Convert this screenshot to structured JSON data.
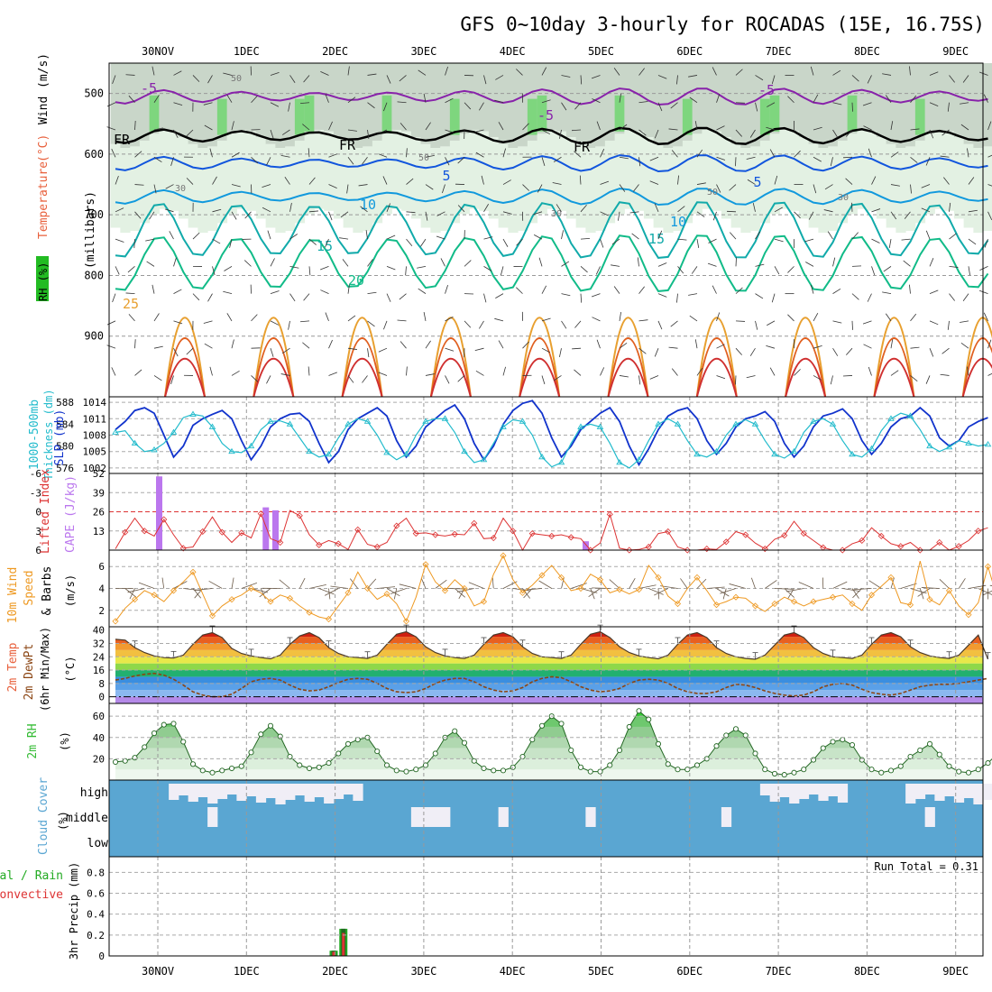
{
  "title": "GFS 0~10day 3-hourly for ROCADAS (15E, 16.75S)",
  "dates": [
    "30NOV",
    "1DEC",
    "2DEC",
    "3DEC",
    "4DEC",
    "5DEC",
    "6DEC",
    "7DEC",
    "8DEC",
    "9DEC"
  ],
  "colors": {
    "temp": "#e8603c",
    "wind": "#000000",
    "rh": "#22bb22",
    "slp": "#1133cc",
    "thick": "#22bbcc",
    "li": "#dd3333",
    "cape": "#bb77ee",
    "wind10": "#ee9922",
    "dew": "#8b4513",
    "rh2m": "#33bb33",
    "cloud": "#5aa6d2",
    "rain": "#dd3333",
    "total": "#22aa22"
  },
  "chart_data": [
    {
      "type": "heatmap",
      "id": "upper_air",
      "ylabel": "(millibars)",
      "side_labels": [
        "Temperature",
        "(°C)",
        "Wind",
        "(m/s)",
        "RH (%)"
      ],
      "y_ticks": [
        500,
        600,
        700,
        800,
        900
      ],
      "ylim": [
        1000,
        450
      ],
      "contour_labels": [
        "-5",
        "-5",
        "-5",
        "FR",
        "FR",
        "FR",
        "5",
        "5",
        "10",
        "10",
        "15",
        "15",
        "20",
        "25",
        "50",
        "50",
        "50",
        "30",
        "30",
        "30"
      ],
      "isotherm_levels": {
        "-5": 505,
        "FR": 570,
        "5": 615,
        "10": 670,
        "15": 725,
        "20": 780
      }
    },
    {
      "type": "line",
      "id": "slp_thickness",
      "side_labels": [
        "1000-500mb",
        "Thickness (dm)",
        "SLP (mb)"
      ],
      "left_ticks": [
        "588",
        "584",
        "580",
        "576"
      ],
      "right_ticks": [
        "1014",
        "1011",
        "1008",
        "1005",
        "1002"
      ],
      "slp_ylim": [
        1001,
        1015
      ],
      "thick_ylim": [
        575,
        589
      ],
      "series": [
        {
          "name": "SLP (mb)",
          "values": [
            1009.0,
            1010.5,
            1012.5,
            1013.0,
            1012.0,
            1008.0,
            1004.0,
            1006.0,
            1009.8,
            1011.0,
            1011.8,
            1012.5,
            1011.0,
            1007.0,
            1003.5,
            1006.0,
            1009.5,
            1011.0,
            1011.8,
            1012.0,
            1010.5,
            1006.5,
            1003.0,
            1005.0,
            1009.0,
            1011.0,
            1012.0,
            1013.0,
            1011.5,
            1007.0,
            1004.0,
            1006.0,
            1009.5,
            1011.0,
            1012.5,
            1013.5,
            1011.0,
            1006.5,
            1003.5,
            1006.0,
            1010.0,
            1012.5,
            1013.8,
            1014.3,
            1012.0,
            1007.5,
            1004.0,
            1006.0,
            1009.0,
            1010.5,
            1012.0,
            1013.0,
            1010.5,
            1006.0,
            1002.6,
            1005.5,
            1009.0,
            1011.5,
            1012.5,
            1013.0,
            1011.0,
            1007.0,
            1004.5,
            1006.5,
            1009.5,
            1011.0,
            1011.5,
            1012.3,
            1010.5,
            1006.5,
            1004.0,
            1006.0,
            1009.5,
            1011.5,
            1012.0,
            1012.8,
            1011.0,
            1007.0,
            1004.5,
            1006.5,
            1009.5,
            1011.0,
            1011.5,
            1013.0,
            1011.5,
            1007.5,
            1006.0,
            1007.0,
            1009.5,
            1010.5,
            1011.2
          ]
        },
        {
          "name": "1000-500mb Thickness (dm)",
          "values": [
            582.5,
            582.8,
            580.5,
            579.0,
            579.3,
            580.5,
            582.5,
            585.2,
            585.8,
            585.5,
            583.5,
            580.5,
            579.0,
            578.8,
            580.0,
            583.0,
            584.5,
            584.6,
            584.0,
            581.5,
            579.0,
            578.0,
            578.5,
            581.5,
            584.0,
            585.0,
            584.5,
            582.0,
            578.8,
            577.5,
            578.5,
            582.0,
            584.5,
            585.0,
            585.0,
            582.5,
            579.0,
            577.0,
            577.5,
            580.5,
            583.5,
            584.8,
            584.5,
            582.0,
            578.0,
            576.2,
            577.0,
            580.5,
            583.5,
            584.0,
            583.5,
            580.5,
            577.0,
            576.0,
            577.5,
            581.0,
            584.0,
            585.0,
            584.0,
            581.0,
            578.5,
            578.0,
            579.0,
            582.0,
            584.0,
            584.8,
            584.0,
            581.0,
            578.5,
            577.8,
            579.0,
            582.5,
            584.5,
            585.0,
            584.0,
            581.0,
            578.5,
            578.0,
            579.5,
            582.8,
            585.0,
            586.0,
            585.5,
            583.0,
            580.0,
            579.0,
            579.8,
            581.0,
            580.5,
            580.0,
            580.3
          ]
        }
      ]
    },
    {
      "type": "bar",
      "id": "li_cape",
      "side_labels": [
        "Lifted Index",
        "CAPE (J/kg)"
      ],
      "left_ticks": [
        "-6",
        "-3",
        "0",
        "3",
        "6"
      ],
      "right_ticks": [
        "52",
        "39",
        "26",
        "13"
      ],
      "cape_ylim": [
        0,
        52
      ],
      "li_ylim": [
        6,
        -6
      ],
      "series": [
        {
          "name": "CAPE (J/kg)",
          "values": [
            0,
            0,
            0,
            0,
            50,
            0,
            0,
            0,
            0,
            0,
            0,
            0,
            0,
            0,
            0,
            0,
            0,
            0,
            0,
            0,
            0,
            0,
            0,
            0,
            0,
            0,
            0,
            0,
            0,
            0,
            0,
            0,
            0,
            0,
            0,
            0,
            0,
            0,
            0,
            0,
            0,
            0,
            0,
            0,
            0,
            0,
            0,
            0,
            0,
            0,
            0,
            0,
            0,
            0,
            0,
            0,
            0,
            0,
            0,
            0,
            0,
            0,
            0,
            0,
            0,
            0,
            0,
            0,
            0,
            0,
            0,
            0,
            0,
            0,
            0,
            0,
            0,
            0,
            0,
            0,
            0,
            0,
            0,
            0,
            0,
            0,
            0,
            0,
            0,
            0,
            0
          ],
          "extra": {
            "15": 29,
            "16": 27,
            "48": 6
          }
        },
        {
          "name": "Lifted Index",
          "values": [
            5.8,
            3.2,
            1.0,
            3.0,
            3.8,
            1.2,
            3.6,
            5.7,
            5.5,
            3.1,
            0.8,
            3.2,
            4.8,
            3.3,
            4.1,
            0.3,
            4.2,
            4.8,
            -0.2,
            0.6,
            3.6,
            5.2,
            4.5,
            5.0,
            5.9,
            2.8,
            5.1,
            5.5,
            4.8,
            2.2,
            1.0,
            3.4,
            3.3,
            3.6,
            3.8,
            3.5,
            3.6,
            1.8,
            4.2,
            4.1,
            1.0,
            3.0,
            6.0,
            3.4,
            3.6,
            3.8,
            3.6,
            4.0,
            4.2,
            6.1,
            4.9,
            0.4,
            5.7,
            6.0,
            5.9,
            5.5,
            3.4,
            3.1,
            5.5,
            6.0,
            6.1,
            5.8,
            5.9,
            4.7,
            3.1,
            3.6,
            4.9,
            5.8,
            4.3,
            3.7,
            1.5,
            3.4,
            4.5,
            5.6,
            6.0,
            6.0,
            5.0,
            4.5,
            2.5,
            3.8,
            5.0,
            5.4,
            4.8,
            6.2,
            6.5,
            4.8,
            6.0,
            5.4,
            4.5,
            3.0,
            2.5
          ]
        }
      ]
    },
    {
      "type": "line",
      "id": "wind10m",
      "side_labels": [
        "10m Wind",
        "Speed",
        "& Barbs",
        "(m/s)"
      ],
      "y_ticks": [
        "6",
        "4",
        "2"
      ],
      "ylim": [
        0.5,
        7.5
      ],
      "series": [
        {
          "name": "10m Wind Speed (m/s)",
          "values": [
            1.0,
            2.2,
            3.0,
            3.8,
            3.4,
            2.8,
            3.8,
            4.6,
            5.5,
            3.5,
            1.5,
            2.4,
            3.0,
            3.4,
            4.0,
            3.6,
            2.8,
            3.4,
            3.1,
            2.4,
            1.8,
            1.4,
            1.2,
            2.4,
            3.6,
            5.5,
            4.0,
            3.0,
            3.5,
            2.6,
            1.0,
            3.2,
            6.2,
            4.6,
            3.8,
            4.8,
            4.0,
            2.4,
            2.8,
            5.3,
            7.0,
            4.8,
            3.6,
            4.3,
            5.2,
            6.1,
            5.0,
            3.8,
            4.0,
            5.3,
            4.8,
            3.6,
            3.9,
            3.5,
            3.9,
            6.1,
            5.0,
            3.3,
            2.6,
            4.0,
            5.0,
            3.8,
            2.5,
            2.8,
            3.2,
            3.1,
            2.4,
            1.9,
            2.6,
            3.2,
            2.8,
            2.4,
            2.8,
            3.0,
            3.2,
            3.4,
            2.6,
            2.0,
            3.4,
            4.2,
            5.0,
            2.7,
            2.5,
            6.5,
            3.0,
            2.5,
            3.8,
            2.4,
            1.6,
            2.7,
            6.0,
            3.0,
            0.9
          ]
        }
      ]
    },
    {
      "type": "area",
      "id": "temp2m",
      "side_labels": [
        "2m Temp",
        "2m DewPt",
        "(6hr Min/Max)",
        "(°C)"
      ],
      "y_ticks": [
        "40",
        "32",
        "24",
        "16",
        "8",
        "0"
      ],
      "ylim": [
        -4,
        42
      ],
      "series": [
        {
          "name": "2m Temp (°C)",
          "values": [
            34.5,
            34.0,
            29.5,
            26.5,
            24.5,
            23.5,
            23.2,
            25.0,
            31.5,
            37.0,
            38.5,
            35.5,
            29.0,
            26.0,
            24.5,
            23.5,
            22.8,
            25.0,
            31.5,
            36.5,
            38.5,
            35.5,
            29.5,
            26.0,
            24.0,
            23.5,
            23.0,
            25.0,
            31.5,
            37.5,
            39.0,
            36.0,
            30.0,
            26.5,
            24.5,
            23.5,
            23.0,
            25.0,
            31.5,
            37.0,
            38.5,
            36.0,
            30.0,
            26.0,
            24.0,
            23.5,
            23.0,
            25.0,
            31.5,
            37.5,
            39.0,
            35.5,
            30.0,
            26.5,
            24.5,
            23.5,
            22.8,
            25.0,
            31.5,
            37.0,
            38.5,
            35.5,
            29.5,
            26.0,
            24.0,
            23.0,
            22.5,
            25.0,
            31.0,
            37.0,
            38.5,
            35.5,
            29.5,
            26.0,
            24.0,
            23.5,
            23.0,
            25.0,
            31.5,
            37.0,
            38.5,
            36.0,
            30.0,
            26.5,
            24.5,
            23.5,
            23.0,
            25.0,
            31.0,
            37.0,
            22.5
          ]
        },
        {
          "name": "2m DewPt (°C)",
          "values": [
            10.0,
            11.0,
            12.5,
            13.5,
            14.0,
            13.0,
            10.5,
            7.0,
            3.0,
            1.0,
            0.0,
            0.0,
            1.5,
            5.0,
            9.0,
            10.5,
            11.0,
            10.0,
            7.0,
            4.5,
            3.5,
            4.0,
            6.0,
            8.5,
            10.5,
            11.0,
            10.5,
            8.0,
            5.0,
            3.0,
            2.5,
            3.0,
            5.0,
            8.0,
            10.0,
            11.0,
            11.0,
            9.0,
            6.0,
            4.0,
            3.0,
            3.5,
            5.5,
            9.0,
            11.0,
            12.0,
            11.5,
            9.0,
            6.0,
            4.0,
            3.0,
            3.5,
            5.0,
            8.0,
            10.0,
            10.5,
            10.0,
            8.0,
            5.0,
            3.0,
            2.0,
            2.0,
            3.0,
            5.5,
            7.5,
            7.0,
            5.5,
            3.5,
            2.0,
            1.0,
            0.5,
            1.0,
            3.0,
            6.0,
            7.5,
            8.0,
            7.0,
            4.5,
            2.5,
            1.5,
            1.0,
            2.0,
            4.0,
            6.0,
            7.0,
            7.5,
            7.5,
            8.0,
            9.0,
            10.0,
            11.0
          ]
        }
      ]
    },
    {
      "type": "area",
      "id": "rh2m",
      "side_labels": [
        "2m RH",
        "(%)"
      ],
      "y_ticks": [
        "60",
        "40",
        "20"
      ],
      "ylim": [
        0,
        72
      ],
      "series": [
        {
          "name": "2m RH (%)",
          "values": [
            17,
            18,
            21,
            31,
            44,
            52,
            53,
            36,
            15,
            9,
            7,
            9,
            11,
            13,
            26,
            43,
            51,
            41,
            22,
            14,
            11,
            12,
            16,
            25,
            34,
            38,
            40,
            27,
            14,
            9,
            8,
            10,
            14,
            25,
            40,
            46,
            35,
            18,
            11,
            9,
            9,
            12,
            22,
            38,
            51,
            60,
            53,
            28,
            12,
            8,
            8,
            14,
            28,
            50,
            65,
            57,
            34,
            15,
            10,
            10,
            14,
            20,
            32,
            42,
            48,
            42,
            25,
            10,
            6,
            5,
            7,
            10,
            19,
            30,
            36,
            38,
            33,
            19,
            10,
            7,
            9,
            13,
            22,
            28,
            34,
            24,
            13,
            8,
            7,
            10,
            16,
            25,
            32,
            36,
            34
          ]
        }
      ]
    },
    {
      "type": "table",
      "id": "cloud",
      "side_labels": [
        "Cloud Cover",
        "(%)"
      ],
      "row_labels": [
        "high",
        "middle",
        "low"
      ],
      "note": "high-cloud clear (light) segments at columns 6-25, 67-75, 82-95; middle clear at 10, 31-34, 40, 49, 63, 84"
    },
    {
      "type": "bar",
      "id": "precip",
      "side_labels": [
        "Total / Rain",
        "Convective",
        "3hr Precip (mm)"
      ],
      "y_ticks": [
        "0.8",
        "0.6",
        "0.4",
        "0.2",
        "0"
      ],
      "ylim": [
        0,
        0.95
      ],
      "run_total_label": "Run Total = 0.31",
      "series": [
        {
          "name": "Total",
          "values": {
            "22": 0.05,
            "23": 0.26
          }
        },
        {
          "name": "Rain",
          "values": {
            "22": 0.05,
            "23": 0.26
          }
        },
        {
          "name": "Convective",
          "values": {
            "22": 0.04,
            "23": 0.22
          }
        }
      ]
    }
  ]
}
